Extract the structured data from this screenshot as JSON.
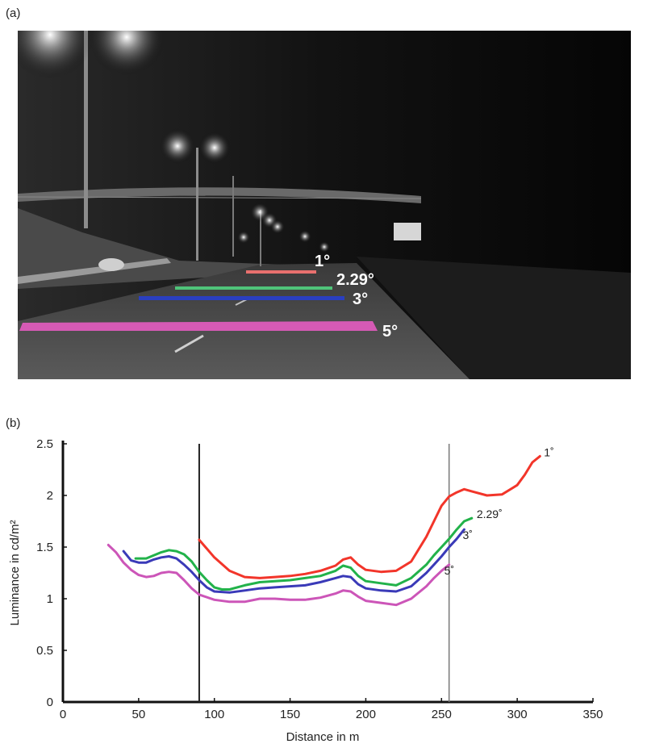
{
  "panels": {
    "a": "(a)",
    "b": "(b)"
  },
  "photo": {
    "angle_labels": [
      "1°",
      "2.29°",
      "3°",
      "5°"
    ],
    "line_colors": [
      "#e8706e",
      "#4fc47a",
      "#2a3fc0",
      "#d65ab5"
    ]
  },
  "chart_data": {
    "type": "line",
    "xlabel": "Distance in m",
    "ylabel": "Luminance in cd/m²",
    "xlim": [
      0,
      350
    ],
    "ylim": [
      0,
      2.5
    ],
    "xticks": [
      0,
      50,
      100,
      150,
      200,
      250,
      300,
      350
    ],
    "yticks": [
      0,
      0.5,
      1,
      1.5,
      2,
      2.5
    ],
    "ytick_labels": [
      "0",
      "0.5",
      "1",
      "1.5",
      "2",
      "2.5"
    ],
    "grid": false,
    "vlines": [
      90,
      255
    ],
    "series": [
      {
        "name": "1°",
        "color": "#f2352a",
        "x": [
          90,
          100,
          110,
          120,
          130,
          140,
          150,
          160,
          170,
          180,
          185,
          190,
          195,
          200,
          210,
          220,
          230,
          240,
          245,
          250,
          255,
          260,
          265,
          270,
          280,
          290,
          300,
          305,
          310,
          315
        ],
        "y": [
          1.57,
          1.4,
          1.27,
          1.21,
          1.2,
          1.21,
          1.22,
          1.24,
          1.27,
          1.32,
          1.38,
          1.4,
          1.33,
          1.28,
          1.26,
          1.27,
          1.36,
          1.6,
          1.75,
          1.9,
          1.99,
          2.03,
          2.06,
          2.04,
          2.0,
          2.01,
          2.1,
          2.2,
          2.32,
          2.38
        ]
      },
      {
        "name": "2.29°",
        "color": "#22b24a",
        "x": [
          48,
          55,
          60,
          65,
          70,
          75,
          80,
          85,
          90,
          95,
          100,
          105,
          110,
          120,
          130,
          140,
          150,
          160,
          170,
          180,
          185,
          190,
          195,
          200,
          210,
          220,
          230,
          240,
          245,
          250,
          255,
          260,
          265,
          270
        ],
        "y": [
          1.39,
          1.39,
          1.42,
          1.45,
          1.47,
          1.46,
          1.43,
          1.36,
          1.26,
          1.18,
          1.11,
          1.09,
          1.09,
          1.13,
          1.16,
          1.17,
          1.18,
          1.2,
          1.22,
          1.27,
          1.32,
          1.3,
          1.22,
          1.17,
          1.15,
          1.13,
          1.2,
          1.33,
          1.42,
          1.5,
          1.58,
          1.67,
          1.75,
          1.78
        ]
      },
      {
        "name": "3°",
        "color": "#3a3ab8",
        "x": [
          40,
          45,
          50,
          55,
          60,
          65,
          70,
          75,
          80,
          85,
          90,
          95,
          100,
          110,
          120,
          130,
          140,
          150,
          160,
          170,
          180,
          185,
          190,
          195,
          200,
          210,
          220,
          230,
          240,
          245,
          250,
          255,
          260,
          265
        ],
        "y": [
          1.46,
          1.37,
          1.35,
          1.35,
          1.38,
          1.4,
          1.41,
          1.39,
          1.33,
          1.26,
          1.18,
          1.11,
          1.07,
          1.06,
          1.08,
          1.1,
          1.11,
          1.12,
          1.13,
          1.16,
          1.2,
          1.22,
          1.21,
          1.14,
          1.1,
          1.08,
          1.07,
          1.12,
          1.25,
          1.33,
          1.41,
          1.5,
          1.58,
          1.67
        ]
      },
      {
        "name": "5°",
        "color": "#cc55b8",
        "x": [
          30,
          35,
          40,
          45,
          50,
          55,
          60,
          65,
          70,
          75,
          80,
          85,
          90,
          100,
          110,
          120,
          130,
          140,
          150,
          160,
          170,
          180,
          185,
          190,
          195,
          200,
          210,
          220,
          230,
          240,
          245,
          250,
          255
        ],
        "y": [
          1.52,
          1.45,
          1.35,
          1.28,
          1.23,
          1.21,
          1.22,
          1.25,
          1.26,
          1.25,
          1.18,
          1.1,
          1.04,
          0.99,
          0.97,
          0.97,
          1.0,
          1.0,
          0.99,
          0.99,
          1.01,
          1.05,
          1.08,
          1.07,
          1.02,
          0.98,
          0.96,
          0.94,
          1.0,
          1.12,
          1.2,
          1.27,
          1.33
        ]
      }
    ],
    "series_labels": [
      "1˚",
      "2.29˚",
      "3˚",
      "5˚"
    ]
  }
}
